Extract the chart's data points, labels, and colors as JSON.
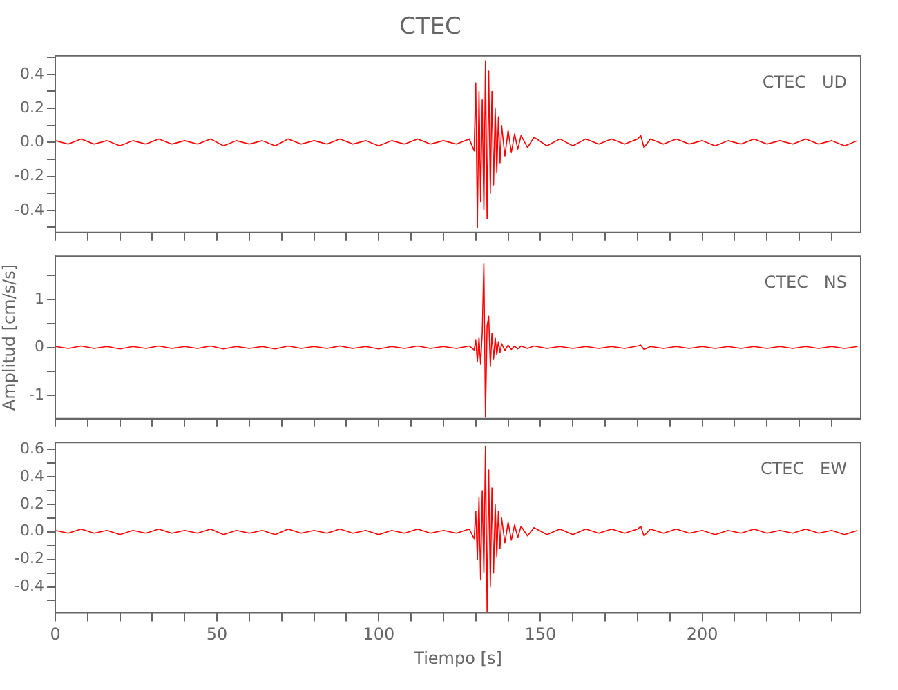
{
  "chart_data": [
    {
      "type": "line",
      "title": "CTEC",
      "annotations": [
        "CTEC   UD"
      ],
      "tick_labels": "y",
      "legend": false,
      "grid": false,
      "x": [
        0,
        4,
        8,
        12,
        16,
        20,
        24,
        28,
        32,
        36,
        40,
        44,
        48,
        52,
        56,
        60,
        64,
        68,
        72,
        76,
        80,
        84,
        88,
        92,
        96,
        100,
        104,
        108,
        112,
        116,
        120,
        124,
        128,
        129.5,
        130,
        130.5,
        131,
        131.5,
        132,
        132.5,
        133,
        133.5,
        134,
        134.5,
        135,
        135.5,
        136,
        136.5,
        137,
        137.5,
        138,
        139,
        140,
        141,
        142,
        143,
        144,
        146,
        148,
        152,
        156,
        160,
        164,
        168,
        172,
        176,
        180,
        181,
        182,
        184,
        188,
        192,
        196,
        200,
        204,
        208,
        212,
        216,
        220,
        224,
        228,
        232,
        236,
        240,
        244,
        248
      ],
      "series": [
        {
          "color": "#ff0000",
          "values": [
            0.01,
            -0.01,
            0.02,
            -0.01,
            0.01,
            -0.02,
            0.01,
            -0.01,
            0.02,
            -0.01,
            0.01,
            -0.01,
            0.02,
            -0.02,
            0.01,
            -0.01,
            0.01,
            -0.02,
            0.02,
            -0.01,
            0.01,
            -0.01,
            0.02,
            -0.01,
            0.01,
            -0.02,
            0.01,
            -0.01,
            0.02,
            -0.01,
            0.01,
            -0.01,
            0.02,
            -0.05,
            0.35,
            -0.5,
            0.3,
            -0.35,
            0.25,
            -0.4,
            0.48,
            -0.45,
            0.42,
            -0.3,
            0.3,
            -0.25,
            0.2,
            -0.18,
            0.15,
            -0.12,
            0.1,
            -0.08,
            0.07,
            -0.06,
            0.05,
            -0.04,
            0.04,
            -0.03,
            0.03,
            -0.02,
            0.02,
            -0.02,
            0.02,
            -0.01,
            0.02,
            -0.01,
            0.02,
            0.04,
            -0.03,
            0.02,
            -0.01,
            0.02,
            -0.01,
            0.01,
            -0.02,
            0.01,
            -0.01,
            0.02,
            -0.01,
            0.01,
            -0.01,
            0.02,
            -0.01,
            0.01,
            -0.02,
            0.01
          ]
        }
      ],
      "xlim": [
        0,
        249
      ],
      "xticks": [
        0,
        {
          "value": 10,
          "label": null
        },
        {
          "value": 20,
          "label": null
        },
        {
          "value": 30,
          "label": null
        },
        {
          "value": 40,
          "label": null
        },
        50,
        {
          "value": 60,
          "label": null
        },
        {
          "value": 70,
          "label": null
        },
        {
          "value": 80,
          "label": null
        },
        {
          "value": 90,
          "label": null
        },
        100,
        {
          "value": 110,
          "label": null
        },
        {
          "value": 120,
          "label": null
        },
        {
          "value": 130,
          "label": null
        },
        {
          "value": 140,
          "label": null
        },
        150,
        {
          "value": 160,
          "label": null
        },
        {
          "value": 170,
          "label": null
        },
        {
          "value": 180,
          "label": null
        },
        {
          "value": 190,
          "label": null
        },
        200,
        {
          "value": 210,
          "label": null
        },
        {
          "value": 220,
          "label": null
        },
        {
          "value": 230,
          "label": null
        },
        {
          "value": 240,
          "label": null
        }
      ],
      "ylim": [
        -0.53,
        0.51
      ],
      "yticks": [
        {
          "value": -0.5,
          "label": null
        },
        -0.4,
        {
          "value": -0.3,
          "label": null
        },
        -0.2,
        {
          "value": -0.1,
          "label": null
        },
        {
          "value": 0,
          "label": "0.0"
        },
        {
          "value": 0.1,
          "label": null
        },
        0.2,
        {
          "value": 0.3,
          "label": null
        },
        0.4,
        {
          "value": 0.5,
          "label": null
        }
      ]
    },
    {
      "type": "line",
      "annotations": [
        "CTEC   NS"
      ],
      "ylabel": "Amplitud [cm/s/s]",
      "tick_labels": "y",
      "legend": false,
      "grid": false,
      "x": [
        0,
        4,
        8,
        12,
        16,
        20,
        24,
        28,
        32,
        36,
        40,
        44,
        48,
        52,
        56,
        60,
        64,
        68,
        72,
        76,
        80,
        84,
        88,
        92,
        96,
        100,
        104,
        108,
        112,
        116,
        120,
        124,
        128,
        129.5,
        130,
        130.5,
        131,
        131.5,
        132,
        132.5,
        133,
        133.5,
        134,
        134.5,
        135,
        135.5,
        136,
        136.5,
        137,
        137.5,
        138,
        139,
        140,
        141,
        142,
        143,
        144,
        146,
        148,
        152,
        156,
        160,
        164,
        168,
        172,
        176,
        180,
        181,
        182,
        184,
        188,
        192,
        196,
        200,
        204,
        208,
        212,
        216,
        220,
        224,
        228,
        232,
        236,
        240,
        244,
        248
      ],
      "series": [
        {
          "color": "#ff0000",
          "values": [
            0.02,
            -0.02,
            0.03,
            -0.02,
            0.02,
            -0.03,
            0.02,
            -0.02,
            0.03,
            -0.02,
            0.02,
            -0.02,
            0.03,
            -0.03,
            0.02,
            -0.02,
            0.02,
            -0.03,
            0.03,
            -0.02,
            0.02,
            -0.02,
            0.03,
            -0.02,
            0.02,
            -0.03,
            0.02,
            -0.02,
            0.03,
            -0.02,
            0.02,
            -0.02,
            0.03,
            -0.05,
            0.15,
            -0.3,
            0.2,
            -0.35,
            0.3,
            1.75,
            -1.45,
            0.45,
            0.65,
            -0.4,
            0.3,
            -0.25,
            0.2,
            -0.15,
            0.12,
            -0.1,
            0.08,
            -0.06,
            0.05,
            -0.04,
            0.03,
            -0.03,
            0.03,
            -0.02,
            0.03,
            -0.02,
            0.02,
            -0.02,
            0.02,
            -0.02,
            0.02,
            -0.02,
            0.03,
            0.05,
            -0.04,
            0.02,
            -0.02,
            0.02,
            -0.02,
            0.02,
            -0.02,
            0.02,
            -0.02,
            0.02,
            -0.02,
            0.02,
            -0.02,
            0.02,
            -0.02,
            0.02,
            -0.02,
            0.02
          ]
        }
      ],
      "xlim": [
        0,
        249
      ],
      "xticks": [
        0,
        {
          "value": 10,
          "label": null
        },
        {
          "value": 20,
          "label": null
        },
        {
          "value": 30,
          "label": null
        },
        {
          "value": 40,
          "label": null
        },
        50,
        {
          "value": 60,
          "label": null
        },
        {
          "value": 70,
          "label": null
        },
        {
          "value": 80,
          "label": null
        },
        {
          "value": 90,
          "label": null
        },
        100,
        {
          "value": 110,
          "label": null
        },
        {
          "value": 120,
          "label": null
        },
        {
          "value": 130,
          "label": null
        },
        {
          "value": 140,
          "label": null
        },
        150,
        {
          "value": 160,
          "label": null
        },
        {
          "value": 170,
          "label": null
        },
        {
          "value": 180,
          "label": null
        },
        {
          "value": 190,
          "label": null
        },
        200,
        {
          "value": 210,
          "label": null
        },
        {
          "value": 220,
          "label": null
        },
        {
          "value": 230,
          "label": null
        },
        {
          "value": 240,
          "label": null
        }
      ],
      "ylim": [
        -1.48,
        1.9
      ],
      "yticks": [
        -1,
        {
          "value": -0.5,
          "label": null
        },
        0,
        {
          "value": 0.5,
          "label": null
        },
        1,
        {
          "value": 1.5,
          "label": null
        }
      ]
    },
    {
      "type": "line",
      "annotations": [
        "CTEC   EW"
      ],
      "xlabel": "Tiempo [s]",
      "legend": false,
      "grid": false,
      "x": [
        0,
        4,
        8,
        12,
        16,
        20,
        24,
        28,
        32,
        36,
        40,
        44,
        48,
        52,
        56,
        60,
        64,
        68,
        72,
        76,
        80,
        84,
        88,
        92,
        96,
        100,
        104,
        108,
        112,
        116,
        120,
        124,
        128,
        129.5,
        130,
        130.5,
        131,
        131.5,
        132,
        132.5,
        133,
        133.5,
        134,
        134.5,
        135,
        135.5,
        136,
        136.5,
        137,
        137.5,
        138,
        139,
        140,
        141,
        142,
        143,
        144,
        146,
        148,
        152,
        156,
        160,
        164,
        168,
        172,
        176,
        180,
        181,
        182,
        184,
        188,
        192,
        196,
        200,
        204,
        208,
        212,
        216,
        220,
        224,
        228,
        232,
        236,
        240,
        244,
        248
      ],
      "series": [
        {
          "color": "#ff0000",
          "values": [
            0.01,
            -0.01,
            0.02,
            -0.01,
            0.01,
            -0.02,
            0.01,
            -0.01,
            0.02,
            -0.01,
            0.01,
            -0.01,
            0.02,
            -0.02,
            0.01,
            -0.01,
            0.01,
            -0.02,
            0.02,
            -0.01,
            0.01,
            -0.01,
            0.02,
            -0.01,
            0.01,
            -0.02,
            0.01,
            -0.01,
            0.02,
            -0.01,
            0.01,
            -0.01,
            0.02,
            -0.05,
            0.15,
            -0.2,
            0.25,
            -0.35,
            0.3,
            -0.3,
            0.62,
            -0.58,
            0.45,
            -0.4,
            0.32,
            -0.3,
            0.2,
            -0.18,
            0.15,
            -0.12,
            0.1,
            -0.08,
            0.07,
            -0.06,
            0.05,
            -0.04,
            0.04,
            -0.03,
            0.03,
            -0.02,
            0.02,
            -0.02,
            0.02,
            -0.01,
            0.02,
            -0.01,
            0.02,
            0.04,
            -0.03,
            0.02,
            -0.01,
            0.02,
            -0.01,
            0.01,
            -0.02,
            0.01,
            -0.01,
            0.02,
            -0.01,
            0.01,
            -0.01,
            0.02,
            -0.01,
            0.01,
            -0.02,
            0.01
          ]
        }
      ],
      "xlim": [
        0,
        249
      ],
      "xticks": [
        0,
        {
          "value": 10,
          "label": null
        },
        {
          "value": 20,
          "label": null
        },
        {
          "value": 30,
          "label": null
        },
        {
          "value": 40,
          "label": null
        },
        50,
        {
          "value": 60,
          "label": null
        },
        {
          "value": 70,
          "label": null
        },
        {
          "value": 80,
          "label": null
        },
        {
          "value": 90,
          "label": null
        },
        100,
        {
          "value": 110,
          "label": null
        },
        {
          "value": 120,
          "label": null
        },
        {
          "value": 130,
          "label": null
        },
        {
          "value": 140,
          "label": null
        },
        150,
        {
          "value": 160,
          "label": null
        },
        {
          "value": 170,
          "label": null
        },
        {
          "value": 180,
          "label": null
        },
        {
          "value": 190,
          "label": null
        },
        200,
        {
          "value": 210,
          "label": null
        },
        {
          "value": 220,
          "label": null
        },
        {
          "value": 230,
          "label": null
        },
        {
          "value": 240,
          "label": null
        }
      ],
      "ylim": [
        -0.59,
        0.65
      ],
      "yticks": [
        {
          "value": -0.5,
          "label": null
        },
        -0.4,
        {
          "value": -0.3,
          "label": null
        },
        -0.2,
        {
          "value": -0.1,
          "label": null
        },
        {
          "value": 0,
          "label": "0.0"
        },
        {
          "value": 0.1,
          "label": null
        },
        0.2,
        {
          "value": 0.3,
          "label": null
        },
        0.4,
        {
          "value": 0.5,
          "label": null
        },
        0.6
      ]
    }
  ]
}
